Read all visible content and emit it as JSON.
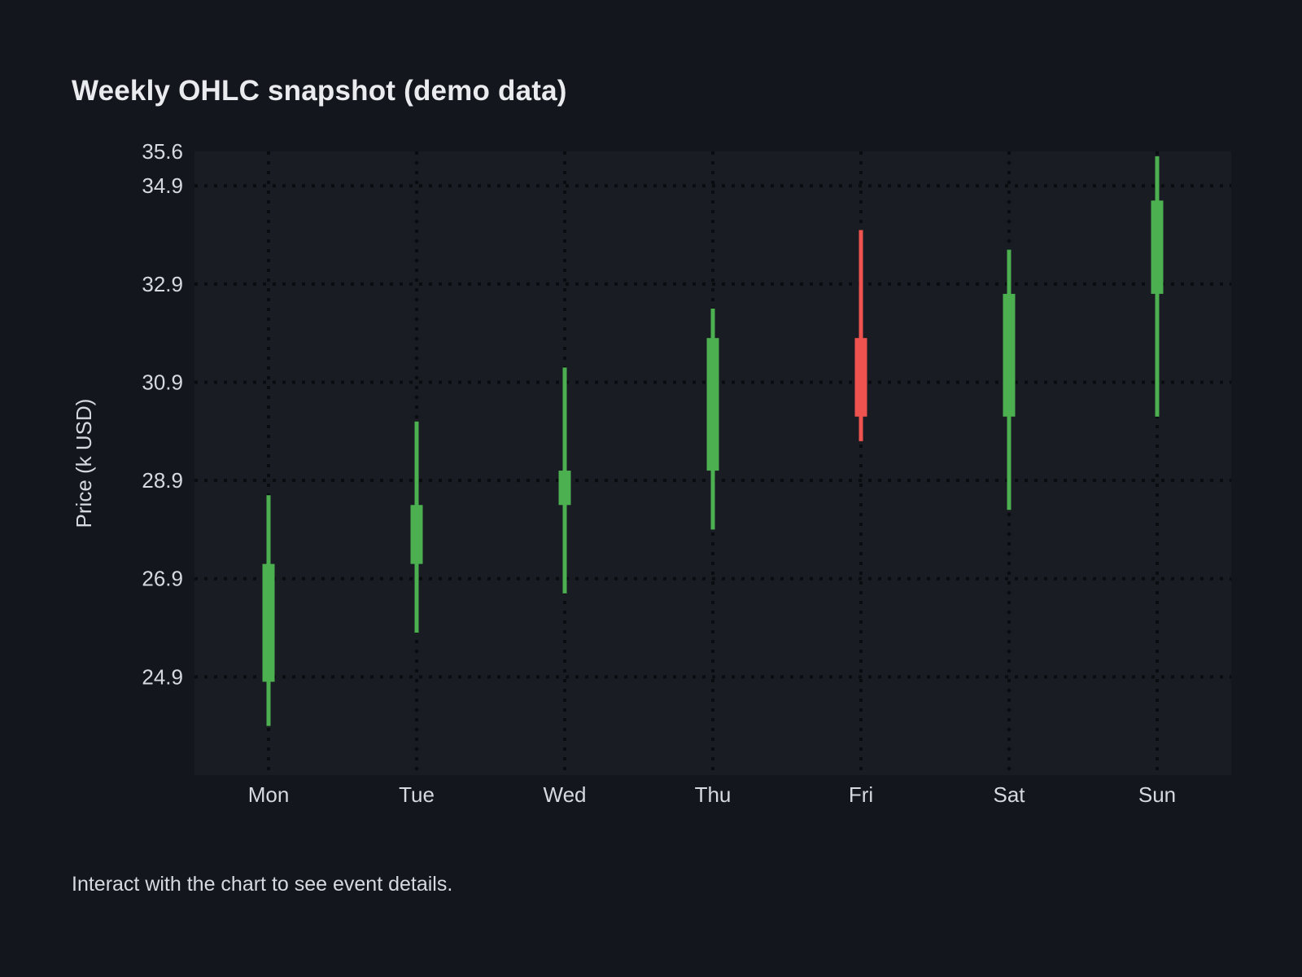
{
  "page": {
    "title": "Weekly OHLC snapshot (demo data)",
    "footer_hint": "Interact with the chart to see event details."
  },
  "chart_data": {
    "type": "candlestick",
    "title": "Weekly OHLC snapshot (demo data)",
    "xlabel": "",
    "ylabel": "Price (k USD)",
    "categories": [
      "Mon",
      "Tue",
      "Wed",
      "Thu",
      "Fri",
      "Sat",
      "Sun"
    ],
    "ohlc": [
      {
        "label": "Mon",
        "open": 24.8,
        "high": 28.6,
        "low": 23.9,
        "close": 27.2,
        "direction": "up"
      },
      {
        "label": "Tue",
        "open": 27.2,
        "high": 30.1,
        "low": 25.8,
        "close": 28.4,
        "direction": "up"
      },
      {
        "label": "Wed",
        "open": 28.4,
        "high": 31.2,
        "low": 26.6,
        "close": 29.1,
        "direction": "up"
      },
      {
        "label": "Thu",
        "open": 29.1,
        "high": 32.4,
        "low": 27.9,
        "close": 31.8,
        "direction": "up"
      },
      {
        "label": "Fri",
        "open": 31.8,
        "high": 34.0,
        "low": 29.7,
        "close": 30.2,
        "direction": "down"
      },
      {
        "label": "Sat",
        "open": 30.2,
        "high": 33.6,
        "low": 28.3,
        "close": 32.7,
        "direction": "up"
      },
      {
        "label": "Sun",
        "open": 32.7,
        "high": 35.5,
        "low": 30.2,
        "close": 34.6,
        "direction": "up"
      }
    ],
    "ylim": [
      22.9,
      35.6
    ],
    "yticks": [
      35.6,
      34.9,
      32.9,
      30.9,
      28.9,
      26.9,
      24.9
    ],
    "grid": "dotted",
    "legend": "none",
    "colors": {
      "up": "#4caf50",
      "down": "#ef5350",
      "background": "#14161d",
      "plot_background": "#191c23",
      "gridline": "#0a0c10",
      "text": "#d6d9de",
      "title": "#e9ebee"
    }
  }
}
